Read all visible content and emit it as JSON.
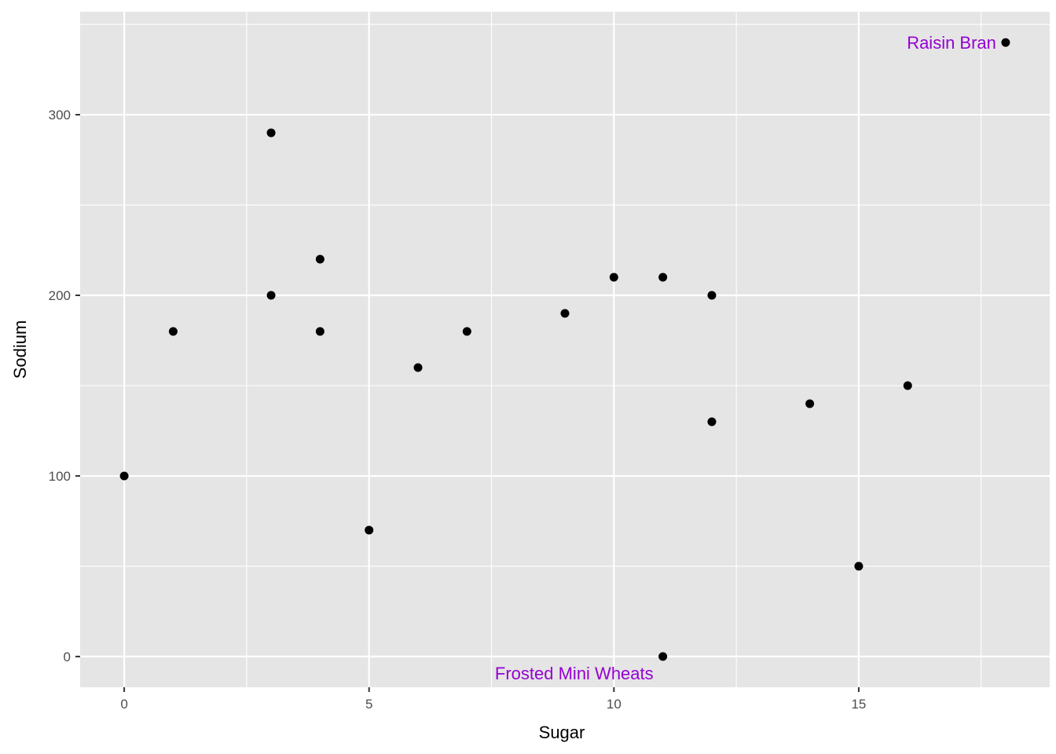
{
  "chart_data": {
    "type": "scatter",
    "title": "",
    "xlabel": "Sugar",
    "ylabel": "Sodium",
    "xlim": [
      -0.9,
      18.9
    ],
    "ylim": [
      -17,
      357
    ],
    "x_ticks": [
      0,
      5,
      10,
      15
    ],
    "x_minor": [
      2.5,
      7.5,
      12.5,
      17.5
    ],
    "y_ticks": [
      0,
      100,
      200,
      300
    ],
    "y_minor": [
      50,
      150,
      250,
      350
    ],
    "grid": true,
    "background": "#e5e5e5",
    "grid_color": "#ffffff",
    "point_color": "#000000",
    "points": [
      {
        "x": 0,
        "y": 100
      },
      {
        "x": 1,
        "y": 180
      },
      {
        "x": 3,
        "y": 290
      },
      {
        "x": 3,
        "y": 200
      },
      {
        "x": 4,
        "y": 220
      },
      {
        "x": 4,
        "y": 180
      },
      {
        "x": 5,
        "y": 70
      },
      {
        "x": 6,
        "y": 160
      },
      {
        "x": 7,
        "y": 180
      },
      {
        "x": 9,
        "y": 190
      },
      {
        "x": 10,
        "y": 210
      },
      {
        "x": 11,
        "y": 210
      },
      {
        "x": 11,
        "y": 0
      },
      {
        "x": 12,
        "y": 200
      },
      {
        "x": 12,
        "y": 130
      },
      {
        "x": 14,
        "y": 140
      },
      {
        "x": 15,
        "y": 50
      },
      {
        "x": 16,
        "y": 150
      },
      {
        "x": 18,
        "y": 340
      }
    ],
    "annotations": [
      {
        "text": "Raisin Bran",
        "x": 18,
        "y": 340,
        "color": "#9400d3",
        "position": "left"
      },
      {
        "text": "Frosted Mini Wheats",
        "x": 11,
        "y": 0,
        "color": "#9400d3",
        "position": "below-left"
      }
    ]
  }
}
